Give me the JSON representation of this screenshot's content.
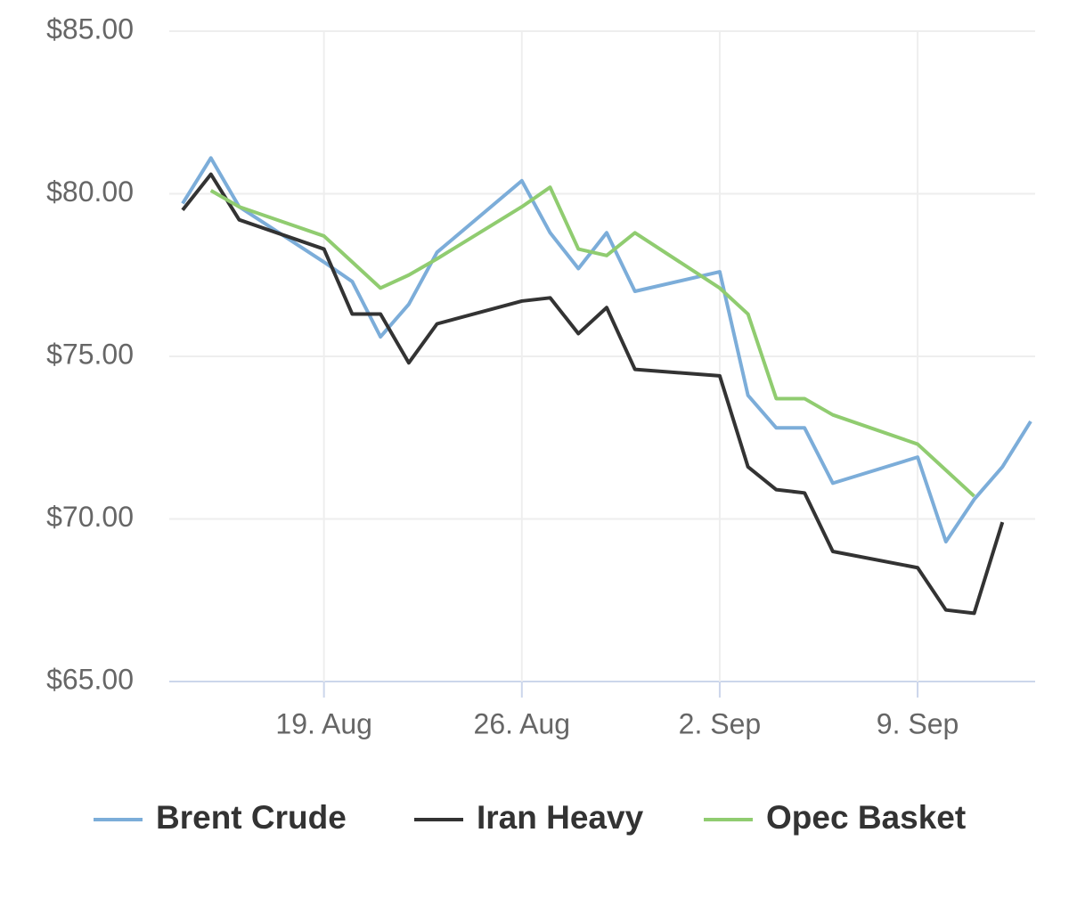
{
  "chart_data": {
    "type": "line",
    "x": [
      "14. Aug",
      "15. Aug",
      "16. Aug",
      "19. Aug",
      "20. Aug",
      "21. Aug",
      "22. Aug",
      "23. Aug",
      "26. Aug",
      "27. Aug",
      "28. Aug",
      "29. Aug",
      "30. Aug",
      "2. Sep",
      "3. Sep",
      "4. Sep",
      "5. Sep",
      "6. Sep",
      "9. Sep",
      "10. Sep",
      "11. Sep",
      "12. Sep",
      "13. Sep"
    ],
    "series": [
      {
        "name": "Brent Crude",
        "color": "#7cadd9",
        "values": [
          79.7,
          81.1,
          79.6,
          77.9,
          77.3,
          75.6,
          76.6,
          78.2,
          80.4,
          78.8,
          77.7,
          78.8,
          77.0,
          77.6,
          73.8,
          72.8,
          72.8,
          71.1,
          71.9,
          69.3,
          70.6,
          71.6,
          73.0
        ]
      },
      {
        "name": "Iran Heavy",
        "color": "#333333",
        "values": [
          79.5,
          80.6,
          79.2,
          78.3,
          76.3,
          76.3,
          74.8,
          76.0,
          76.7,
          76.8,
          75.7,
          76.5,
          74.6,
          74.4,
          71.6,
          70.9,
          70.8,
          69.0,
          68.5,
          67.2,
          67.1,
          69.9,
          null
        ]
      },
      {
        "name": "Opec Basket",
        "color": "#90cc70",
        "values": [
          null,
          80.1,
          79.6,
          78.7,
          77.9,
          77.1,
          77.5,
          78.0,
          79.6,
          80.2,
          78.3,
          78.1,
          78.8,
          77.1,
          76.3,
          73.7,
          73.7,
          73.2,
          72.3,
          71.5,
          70.7,
          null,
          null
        ]
      }
    ],
    "xlim": [
      "14. Aug",
      "13. Sep"
    ],
    "xticks": [
      "19. Aug",
      "26. Aug",
      "2. Sep",
      "9. Sep"
    ],
    "ylim": [
      65,
      85
    ],
    "yticks": [
      {
        "value": 65,
        "label": "$65.00"
      },
      {
        "value": 70,
        "label": "$70.00"
      },
      {
        "value": 75,
        "label": "$75.00"
      },
      {
        "value": 80,
        "label": "$80.00"
      },
      {
        "value": 85,
        "label": "$85.00"
      }
    ],
    "grid": true,
    "legend": "bottom"
  }
}
